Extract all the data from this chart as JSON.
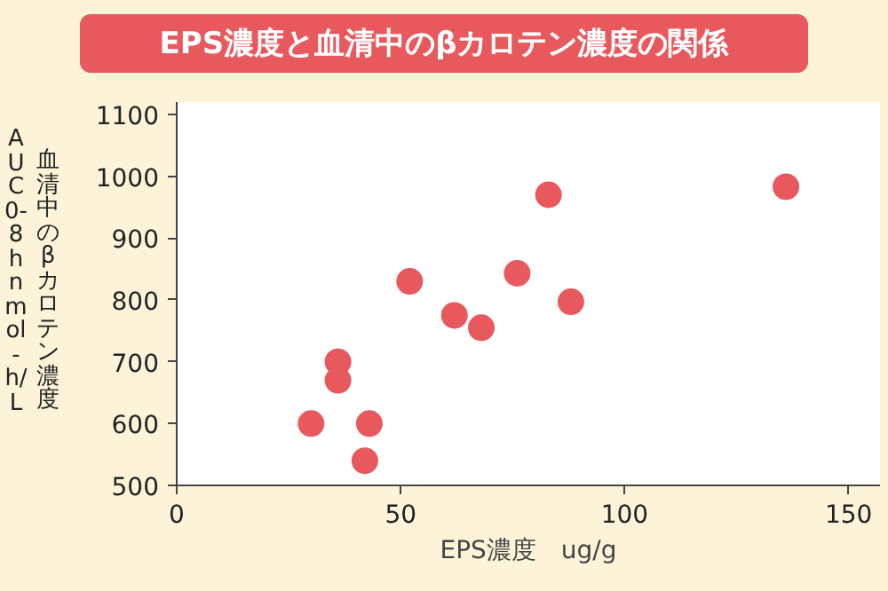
{
  "chart_data": {
    "type": "scatter",
    "title": "EPS濃度と血清中のβカロテン濃度の関係",
    "xlabel": "EPS濃度　ug/g",
    "ylabel": "AUC0-8h　nmol-h/L\n血清中のβカロテン濃度",
    "marker": "circle",
    "xlim": [
      0,
      157
    ],
    "ylim": [
      500,
      1120
    ],
    "xticks": [
      0,
      50,
      100,
      150
    ],
    "yticks": [
      500,
      600,
      700,
      800,
      900,
      1000,
      1100
    ],
    "series": [
      {
        "color": "#e8595e",
        "x": [
          30,
          36,
          36,
          43,
          42,
          52,
          62,
          68,
          76,
          83,
          88,
          136
        ],
        "values": [
          600,
          700,
          670,
          600,
          540,
          830,
          775,
          755,
          843,
          970,
          797,
          983
        ]
      }
    ]
  }
}
